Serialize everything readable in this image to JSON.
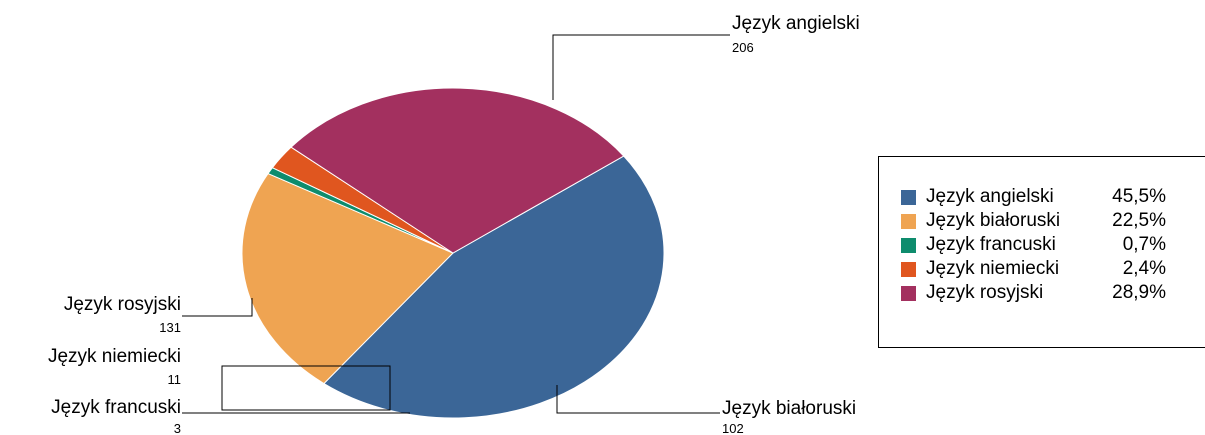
{
  "chart_data": {
    "type": "pie",
    "categories": [
      "Język angielski",
      "Język białoruski",
      "Język francuski",
      "Język niemiecki",
      "Język rosyjski"
    ],
    "values": [
      206,
      102,
      3,
      11,
      131
    ],
    "value_labels": [
      "206",
      "102",
      "3",
      "11",
      "131"
    ],
    "percents": [
      "45,5%",
      "22,5%",
      "0,7%",
      "2,4%",
      "28,9%"
    ],
    "colors": [
      "#3B6697",
      "#EFA452",
      "#0E8C6D",
      "#E0561F",
      "#A3305F"
    ],
    "legend_position": "right"
  }
}
